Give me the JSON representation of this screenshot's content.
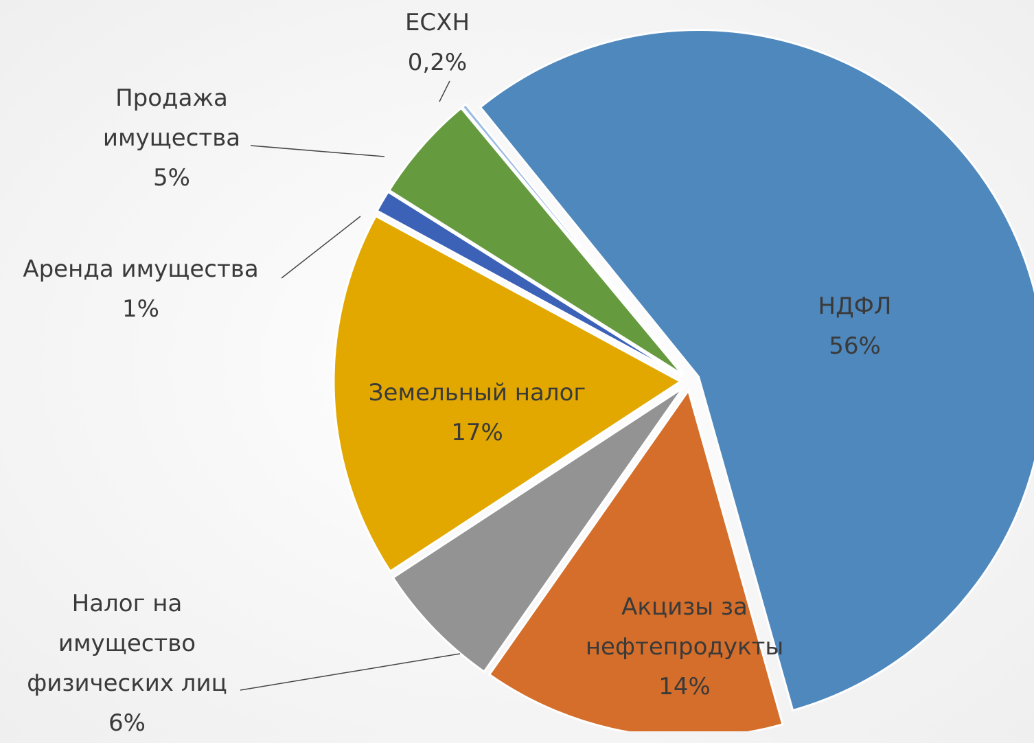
{
  "chart_data": {
    "type": "pie",
    "categories": [
      "НДФЛ",
      "Акцизы за нефтепродукты",
      "Налог на имущество физических лиц",
      "Земельный налог",
      "Аренда имущества",
      "Продажа имущества",
      "ЕСХН"
    ],
    "values": [
      56,
      14,
      6,
      17,
      1,
      5,
      0.2
    ],
    "value_labels": [
      "56%",
      "14%",
      "6%",
      "17%",
      "1%",
      "5%",
      "0,2%"
    ],
    "colors": [
      "#4f88bd",
      "#d46e2a",
      "#939393",
      "#e2a800",
      "#3c62b8",
      "#659a3f",
      "#9dbce3"
    ]
  }
}
